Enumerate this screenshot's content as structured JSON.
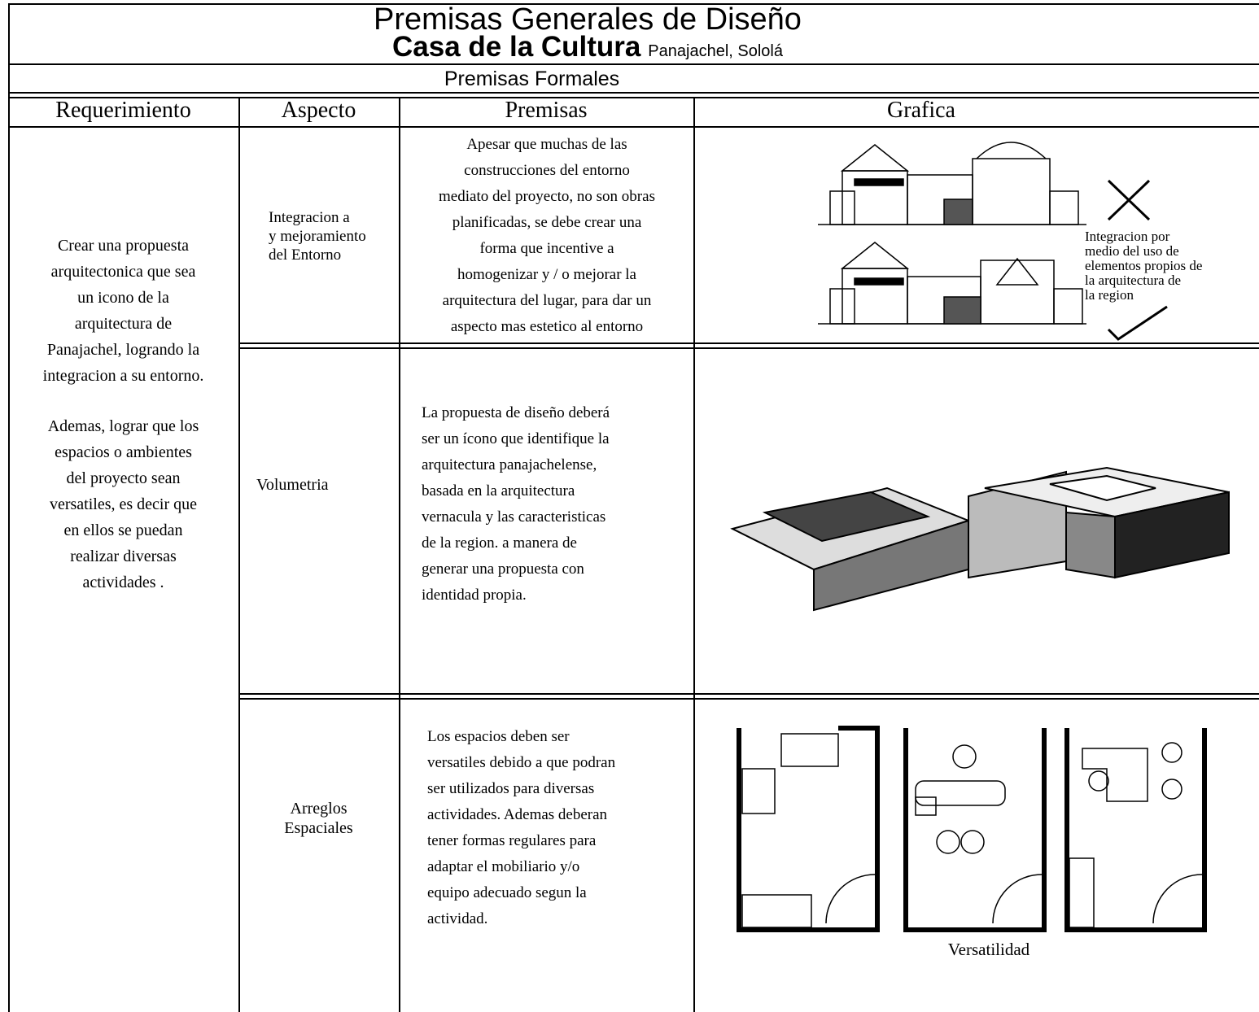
{
  "header": {
    "title": "Premisas Generales de Diseño",
    "subtitle": "Casa de la Cultura",
    "location": "Panajachel, Sololá",
    "section": "Premisas Formales"
  },
  "columns": [
    "Requerimiento",
    "Aspecto",
    "Premisas",
    "Grafica"
  ],
  "requirement": [
    [
      "Crear una propuesta",
      "arquitectonica que sea",
      "un icono de la",
      "arquitectura de",
      "Panajachel, logrando la",
      "integracion a su entorno."
    ],
    [
      "Ademas, lograr que los",
      "espacios  o ambientes",
      "del proyecto sean",
      "versatiles, es decir que",
      "en ellos se puedan",
      "realizar diversas",
      "actividades ."
    ]
  ],
  "rows": [
    {
      "aspect": [
        "Integracion a",
        "y mejoramiento",
        "del Entorno"
      ],
      "premise": [
        "Apesar que muchas de las",
        "construcciones del entorno",
        "mediato del proyecto, no son obras",
        "planificadas, se debe crear una",
        "forma que incentive a",
        "homogenizar y / o mejorar la",
        "arquitectura del lugar, para dar un",
        "aspecto mas estetico al entorno"
      ],
      "graphic_note": [
        "Integracion por",
        "medio del uso de",
        "elementos propios de",
        "la arquitectura de",
        "la region"
      ]
    },
    {
      "aspect": [
        "Volumetria"
      ],
      "premise": [
        "La propuesta de diseño deberá",
        "ser un ícono que identifique la",
        "arquitectura panajachelense,",
        "basada en la arquitectura",
        "vernacula y las caracteristicas",
        "de la region. a manera de",
        "generar una propuesta con",
        "identidad propia."
      ]
    },
    {
      "aspect": [
        "Arreglos",
        "Espaciales"
      ],
      "premise": [
        "Los espacios deben ser",
        "versatiles debido a que podran",
        "ser utilizados para diversas",
        "actividades. Ademas deberan",
        "tener formas regulares para",
        "adaptar el mobiliario y/o",
        "equipo adecuado segun la",
        "actividad."
      ],
      "graphic_caption": "Versatilidad"
    }
  ]
}
